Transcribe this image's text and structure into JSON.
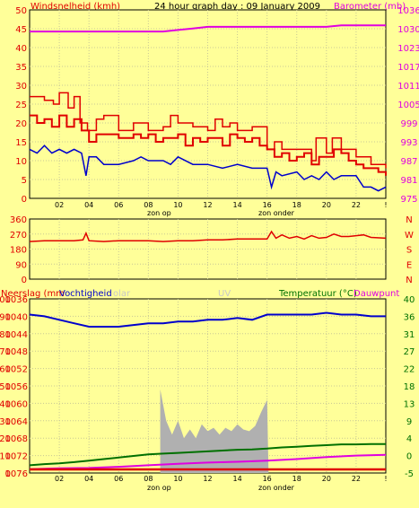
{
  "header": {
    "title": "24 hour graph day : 09 January 2009",
    "left_label": "Windsnelheid (kmh)",
    "right_label": "Barometer (mb)"
  },
  "x_axis": {
    "ticks": [
      "02",
      "04",
      "06",
      "08",
      "10",
      "12",
      "14",
      "16",
      "18",
      "20",
      "22",
      "!"
    ],
    "sunrise_label": "zon op",
    "sunset_label": "zon onder"
  },
  "colors": {
    "background": "#ffff99",
    "wind": "#e00000",
    "gust": "#e00000",
    "wind_avg": "#0000cc",
    "barometer": "#e000e0",
    "direction": "#e00000",
    "humidity": "#0000cc",
    "temperature": "#007000",
    "dewpoint": "#e000e0",
    "solar": "#b0b0b0",
    "rain": "#e00000",
    "left_label": "#e00000",
    "right_label": "#e000e0",
    "temp_label": "#007000"
  },
  "chart_data": [
    {
      "type": "line",
      "name": "wind-barometer",
      "x_range": [
        0,
        24
      ],
      "y_left_ticks": [
        "50",
        "45",
        "40",
        "35",
        "30",
        "25",
        "20",
        "15",
        "10",
        "5",
        "0"
      ],
      "y_left_range": [
        0,
        50
      ],
      "y_right_ticks": [
        "1036",
        "1030",
        "1023",
        "1017",
        "1011",
        "1005",
        "999",
        "993",
        "987",
        "981",
        "975"
      ],
      "y_right_range": [
        975,
        1036
      ],
      "series": [
        {
          "name": "Windsnelheid",
          "axis": "left",
          "x": [
            0,
            0.5,
            1,
            1.5,
            2,
            2.5,
            3,
            3.5,
            4,
            4.5,
            5,
            5.5,
            6,
            6.5,
            7,
            7.5,
            8,
            8.5,
            9,
            9.5,
            10,
            10.5,
            11,
            11.5,
            12,
            12.5,
            13,
            13.5,
            14,
            14.5,
            15,
            15.5,
            16,
            16.5,
            17,
            17.5,
            18,
            18.5,
            19,
            19.5,
            20,
            20.5,
            21,
            21.5,
            22,
            22.5,
            23,
            23.5,
            24
          ],
          "values": [
            22,
            20,
            21,
            19,
            22,
            19,
            21,
            18,
            15,
            17,
            17,
            17,
            16,
            16,
            17,
            16,
            17,
            15,
            16,
            16,
            17,
            14,
            16,
            15,
            16,
            16,
            14,
            17,
            16,
            15,
            16,
            14,
            13,
            11,
            12,
            10,
            11,
            12,
            9,
            11,
            11,
            13,
            12,
            10,
            9,
            8,
            8,
            7,
            6
          ]
        },
        {
          "name": "Windstoten",
          "axis": "left",
          "x": [
            0,
            1,
            1.6,
            2,
            2.6,
            3,
            3.4,
            3.9,
            4.5,
            5,
            6,
            7,
            8,
            9,
            9.5,
            10,
            11,
            12,
            12.5,
            13,
            13.5,
            14,
            15,
            16,
            16.5,
            17,
            18,
            19,
            19.3,
            20,
            20.4,
            21,
            22,
            23,
            24
          ],
          "values": [
            27,
            26,
            25,
            28,
            24,
            27,
            20,
            18,
            21,
            22,
            18,
            20,
            18,
            19,
            22,
            20,
            19,
            18,
            21,
            19,
            20,
            18,
            19,
            13,
            15,
            13,
            13,
            10,
            16,
            12,
            16,
            13,
            11,
            9,
            8
          ]
        },
        {
          "name": "Windsnelheid gemiddeld",
          "axis": "left",
          "x": [
            0,
            0.5,
            1,
            1.5,
            2,
            2.5,
            3,
            3.5,
            3.8,
            4,
            4.5,
            5,
            6,
            7,
            7.5,
            8,
            9,
            9.5,
            10,
            11,
            12,
            13,
            14,
            15,
            16,
            16.3,
            16.6,
            17,
            18,
            18.5,
            19,
            19.5,
            20,
            20.5,
            21,
            22,
            22.5,
            23,
            23.5,
            24
          ],
          "values": [
            13,
            12,
            14,
            12,
            13,
            12,
            13,
            12,
            6,
            11,
            11,
            9,
            9,
            10,
            11,
            10,
            10,
            9,
            11,
            9,
            9,
            8,
            9,
            8,
            8,
            3,
            7,
            6,
            7,
            5,
            6,
            5,
            7,
            5,
            6,
            6,
            3,
            3,
            2,
            3
          ]
        },
        {
          "name": "Barometer",
          "axis": "right",
          "x": [
            0,
            1,
            2,
            3,
            4,
            5,
            6,
            7,
            8,
            9,
            10,
            11,
            12,
            13,
            14,
            15,
            16,
            17,
            18,
            19,
            20,
            21,
            22,
            23,
            24
          ],
          "values": [
            1029,
            1029,
            1029,
            1029,
            1029,
            1029,
            1029,
            1029,
            1029,
            1029,
            1029.5,
            1030,
            1030.5,
            1030.5,
            1030.5,
            1030.5,
            1030.5,
            1030.5,
            1030.5,
            1030.5,
            1030.5,
            1031,
            1031,
            1031,
            1031
          ]
        }
      ]
    },
    {
      "type": "line",
      "name": "wind-direction",
      "x_range": [
        0,
        24
      ],
      "y_left_ticks": [
        "360",
        "270",
        "180",
        "90",
        "0"
      ],
      "y_left_range": [
        0,
        360
      ],
      "y_right_ticks": [
        "N",
        "W",
        "S",
        "E",
        "N"
      ],
      "series": [
        {
          "name": "Windrichting",
          "axis": "left",
          "x": [
            0,
            1,
            2,
            3,
            3.6,
            3.8,
            4,
            5,
            6,
            7,
            8,
            9,
            10,
            11,
            12,
            13,
            14,
            15,
            16,
            16.3,
            16.6,
            17,
            17.5,
            18,
            18.5,
            19,
            19.5,
            20,
            20.5,
            21,
            21.5,
            22,
            22.5,
            23,
            24
          ],
          "values": [
            225,
            230,
            230,
            230,
            235,
            275,
            230,
            225,
            230,
            230,
            230,
            225,
            230,
            230,
            235,
            235,
            240,
            240,
            240,
            285,
            245,
            265,
            245,
            255,
            240,
            260,
            245,
            250,
            270,
            255,
            255,
            260,
            265,
            250,
            245
          ]
        }
      ]
    },
    {
      "type": "line",
      "name": "humidity-temperature-solar",
      "x_range": [
        0,
        24
      ],
      "y_left_ticks": [
        "100",
        "90",
        "80",
        "70",
        "60",
        "50",
        "40",
        "30",
        "20",
        "10",
        "0"
      ],
      "y_left2_ticks": [
        "1036",
        "1040",
        "1044",
        "1048",
        "1052",
        "1056",
        "1060",
        "1064",
        "1068",
        "1072",
        "1076"
      ],
      "y_left_range": [
        0,
        100
      ],
      "y_right_ticks": [
        "40",
        "36",
        "31",
        "27",
        "22",
        "18",
        "13",
        "9",
        "4",
        "0",
        "-5"
      ],
      "y_right_range": [
        -5,
        40
      ],
      "labels": {
        "rain": "Neerslag (mm",
        "humidity": "Vochtigheid",
        "solar": "olar",
        "uv": "UV",
        "temperature": "Temperatuur (°C)",
        "dewpoint": "Dauwpunt"
      },
      "series": [
        {
          "name": "Vochtigheid",
          "axis": "left",
          "x": [
            0,
            1,
            2,
            3,
            4,
            5,
            6,
            7,
            8,
            9,
            10,
            11,
            12,
            13,
            14,
            15,
            16,
            17,
            18,
            19,
            20,
            21,
            22,
            23,
            24
          ],
          "values": [
            91,
            90,
            88,
            86,
            84,
            84,
            84,
            85,
            86,
            86,
            87,
            87,
            88,
            88,
            89,
            88,
            91,
            91,
            91,
            91,
            92,
            91,
            91,
            90,
            90
          ]
        },
        {
          "name": "Temperatuur",
          "axis": "right",
          "x": [
            0,
            1,
            2,
            3,
            4,
            5,
            6,
            7,
            8,
            9,
            10,
            11,
            12,
            13,
            14,
            15,
            16,
            17,
            18,
            19,
            20,
            21,
            22,
            23,
            24
          ],
          "values": [
            -3,
            -2.7,
            -2.5,
            -2.2,
            -1.8,
            -1.4,
            -1,
            -0.6,
            -0.2,
            0,
            0.2,
            0.4,
            0.6,
            0.8,
            1,
            1.1,
            1.3,
            1.6,
            1.8,
            2,
            2.2,
            2.4,
            2.4,
            2.5,
            2.5
          ]
        },
        {
          "name": "Dauwpunt",
          "axis": "right",
          "x": [
            0,
            2,
            4,
            6,
            8,
            10,
            12,
            14,
            16,
            18,
            20,
            22,
            24
          ],
          "values": [
            -4,
            -3.8,
            -3.7,
            -3.4,
            -3,
            -2.6,
            -2.3,
            -2.1,
            -1.8,
            -1.4,
            -0.9,
            -0.5,
            -0.3
          ]
        },
        {
          "name": "Zonnestraling",
          "axis": "left",
          "x": [
            8.8,
            9.2,
            9.6,
            10,
            10.4,
            10.8,
            11.2,
            11.6,
            12,
            12.4,
            12.8,
            13.2,
            13.6,
            14,
            14.4,
            14.8,
            15.2,
            15.6,
            16,
            16.1
          ],
          "values": [
            48,
            30,
            22,
            30,
            20,
            25,
            20,
            28,
            24,
            26,
            22,
            26,
            24,
            28,
            25,
            24,
            27,
            35,
            42,
            0
          ]
        },
        {
          "name": "Neerslag",
          "axis": "left",
          "x": [
            0,
            24
          ],
          "values": [
            0,
            0
          ]
        }
      ]
    }
  ]
}
